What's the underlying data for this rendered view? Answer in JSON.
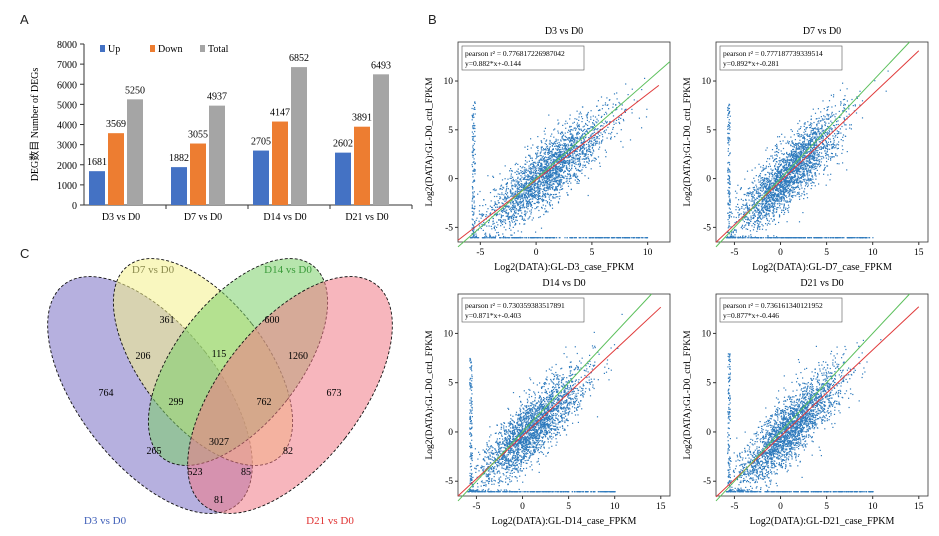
{
  "panels": {
    "a": "A",
    "b": "B",
    "c": "C"
  },
  "chart_data": [
    {
      "type": "bar",
      "categories": [
        "D3 vs D0",
        "D7 vs D0",
        "D14 vs D0",
        "D21 vs D0"
      ],
      "series": [
        {
          "name": "Up",
          "values": [
            1681,
            1882,
            2705,
            2602
          ],
          "color": "#4472c4"
        },
        {
          "name": "Down",
          "values": [
            3569,
            3055,
            4147,
            3891
          ],
          "color": "#ed7d31"
        },
        {
          "name": "Total",
          "values": [
            5250,
            4937,
            6852,
            6493
          ],
          "color": "#a5a5a5"
        }
      ],
      "ylabel": "DEG数目 Number of DEGs",
      "ylim": [
        0,
        8000
      ],
      "yticks": [
        0,
        1000,
        2000,
        3000,
        4000,
        5000,
        6000,
        7000,
        8000
      ],
      "legend": "top-left"
    },
    {
      "type": "scatter",
      "title": "D3 vs D0",
      "xlabel": "Log2(DATA):GL-D3_case_FPKM",
      "ylabel": "Log2(DATA):GL-D0_ctrl_FPKM",
      "annotation_r": "pearson r² = 0.776817226987042",
      "annotation_eq": "y=0.882*x+-0.144",
      "fit": {
        "slope": 0.882,
        "intercept": -0.144
      },
      "xticks": [
        "-5",
        "0",
        "5",
        "10"
      ],
      "yticks": [
        "-5",
        "0",
        "5",
        "10"
      ],
      "xlim": [
        -7,
        12
      ],
      "ylim": [
        -6.5,
        14
      ]
    },
    {
      "type": "scatter",
      "title": "D7 vs D0",
      "xlabel": "Log2(DATA):GL-D7_case_FPKM",
      "ylabel": "Log2(DATA):GL-D0_ctrl_FPKM",
      "annotation_r": "pearson r² = 0.777187739339514",
      "annotation_eq": "y=0.892*x+-0.281",
      "fit": {
        "slope": 0.892,
        "intercept": -0.281
      },
      "xticks": [
        "-5",
        "0",
        "5",
        "10",
        "15"
      ],
      "yticks": [
        "-5",
        "0",
        "5",
        "10"
      ],
      "xlim": [
        -7,
        16
      ],
      "ylim": [
        -6.5,
        14
      ]
    },
    {
      "type": "scatter",
      "title": "D14 vs D0",
      "xlabel": "Log2(DATA):GL-D14_case_FPKM",
      "ylabel": "Log2(DATA):GL-D0_ctrl_FPKM",
      "annotation_r": "pearson r² = 0.730359383517891",
      "annotation_eq": "y=0.871*x+-0.403",
      "fit": {
        "slope": 0.871,
        "intercept": -0.403
      },
      "xticks": [
        "-5",
        "0",
        "5",
        "10",
        "15"
      ],
      "yticks": [
        "-5",
        "0",
        "5",
        "10"
      ],
      "xlim": [
        -7,
        16
      ],
      "ylim": [
        -6.5,
        14
      ]
    },
    {
      "type": "scatter",
      "title": "D21 vs D0",
      "xlabel": "Log2(DATA):GL-D21_case_FPKM",
      "ylabel": "Log2(DATA):GL-D0_ctrl_FPKM",
      "annotation_r": "pearson r² = 0.736161340121952",
      "annotation_eq": "y=0.877*x+-0.446",
      "fit": {
        "slope": 0.877,
        "intercept": -0.446
      },
      "xticks": [
        "-5",
        "0",
        "5",
        "10",
        "15"
      ],
      "yticks": [
        "-5",
        "0",
        "5",
        "10"
      ],
      "xlim": [
        -7,
        16
      ],
      "ylim": [
        -6.5,
        14
      ]
    }
  ],
  "venn": {
    "sets": [
      {
        "name": "D3 vs D0",
        "color": "#3f5fb8",
        "fill": "#7a6fc4"
      },
      {
        "name": "D7 vs D0",
        "color": "#8b8b4e",
        "fill": "#f4f18a"
      },
      {
        "name": "D14 vs D0",
        "color": "#3a9a3a",
        "fill": "#7ccf6a"
      },
      {
        "name": "D21 vs D0",
        "color": "#e03030",
        "fill": "#f07a86"
      }
    ],
    "regions": {
      "d3_only": "764",
      "d7_only": "361",
      "d14_only": "600",
      "d21_only": "673",
      "d3_d7": "206",
      "d7_d14": "115",
      "d14_d21": "1260",
      "d3_d7_d14": "299",
      "d7_d14_d21": "762",
      "all": "3027",
      "d3_d14": "265",
      "d7_d21": "82",
      "d3_d14_d21": "523",
      "d3_d7_d21": "85",
      "d3_d21": "81"
    }
  }
}
